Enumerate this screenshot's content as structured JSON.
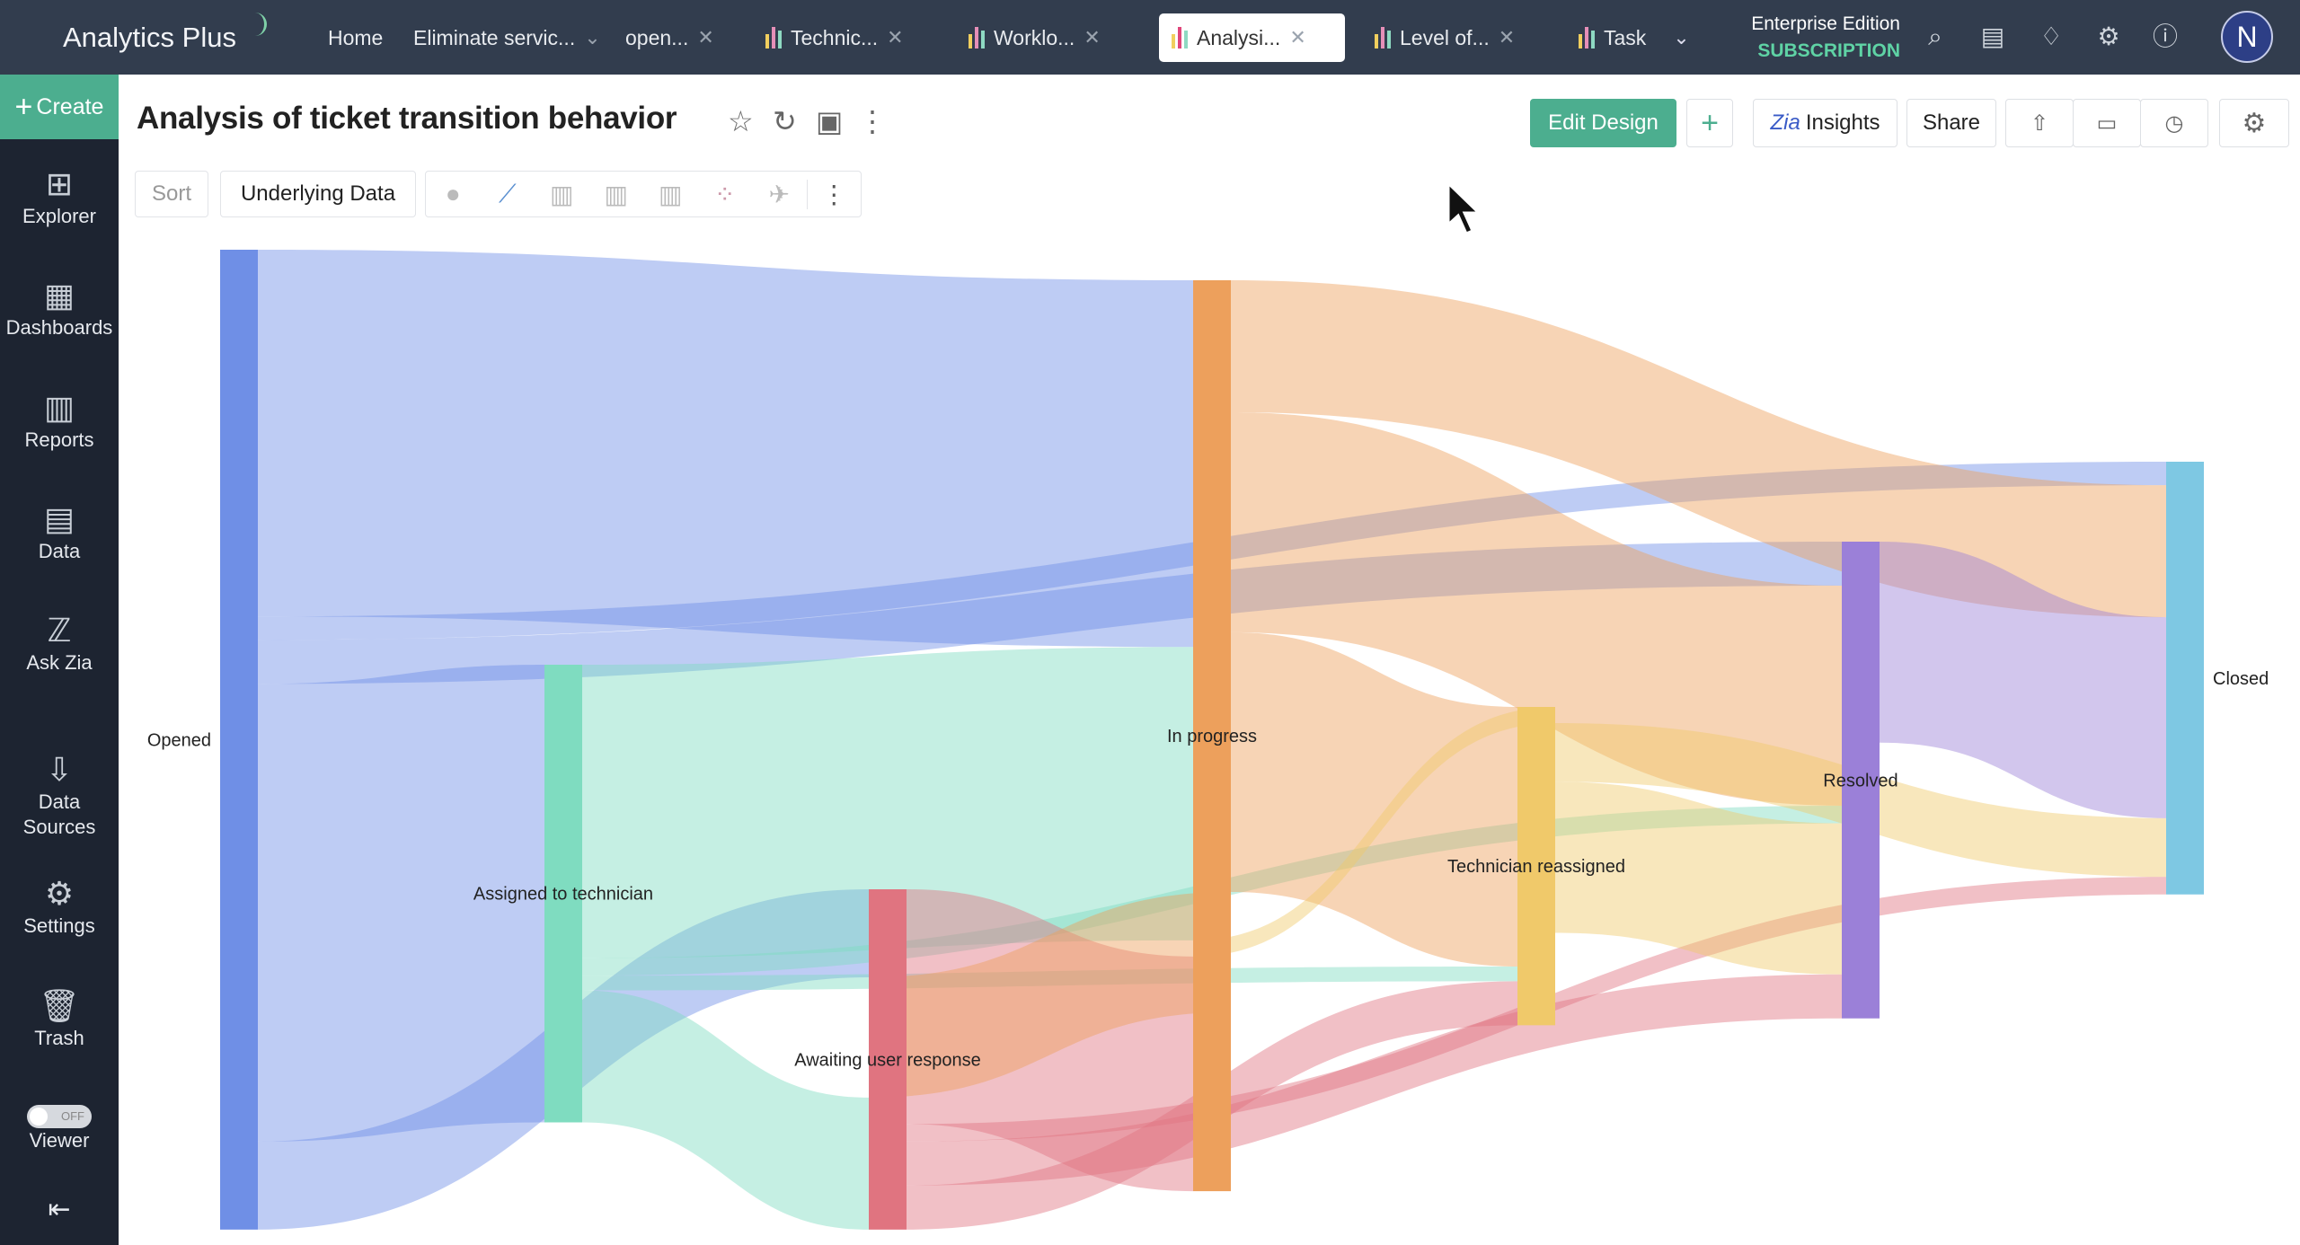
{
  "app": {
    "name": "Analytics Plus"
  },
  "tabs": [
    {
      "label": "Home",
      "icon": "none"
    },
    {
      "label": "Eliminate servic...",
      "icon": "chevron-down"
    },
    {
      "label": "open...",
      "icon": "close"
    },
    {
      "label": "Technic...",
      "icon": "bar-chart"
    },
    {
      "label": "Worklo...",
      "icon": "bar-chart"
    },
    {
      "label": "Analysi...",
      "icon": "bar-chart",
      "active": true
    },
    {
      "label": "Level of...",
      "icon": "bar-chart"
    },
    {
      "label": "Task",
      "icon": "bar-chart"
    }
  ],
  "header": {
    "edition": "Enterprise Edition",
    "subscription": "SUBSCRIPTION",
    "avatar": "N"
  },
  "sidebar": {
    "create": "Create",
    "items": [
      {
        "label": "Explorer",
        "icon": "explorer-icon"
      },
      {
        "label": "Dashboards",
        "icon": "dashboards-icon"
      },
      {
        "label": "Reports",
        "icon": "reports-icon"
      },
      {
        "label": "Data",
        "icon": "data-icon"
      },
      {
        "label": "Ask Zia",
        "icon": "zia-icon"
      },
      {
        "label": "Data Sources",
        "icon": "data-sources-icon"
      },
      {
        "label": "Settings",
        "icon": "gear-icon"
      },
      {
        "label": "Trash",
        "icon": "trash-icon"
      },
      {
        "label": "Viewer",
        "icon": "toggle"
      }
    ],
    "viewer_toggle": "OFF"
  },
  "report": {
    "title": "Analysis of ticket transition behavior"
  },
  "actions": {
    "edit_design": "Edit Design",
    "insights": "Insights",
    "share": "Share"
  },
  "toolbar": {
    "sort": "Sort",
    "underlying_data": "Underlying Data"
  },
  "colors": {
    "brand_green": "#4cae8f",
    "topbar": "#323d4e",
    "sidebar": "#1d2431"
  },
  "chart_data": {
    "type": "sankey",
    "nodes": [
      {
        "name": "Opened",
        "color": "#6f8fe6"
      },
      {
        "name": "Assigned to technician",
        "color": "#7fdcc0"
      },
      {
        "name": "Awaiting user response",
        "color": "#e07480"
      },
      {
        "name": "In progress",
        "color": "#eda05c"
      },
      {
        "name": "Technician reassigned",
        "color": "#f0c96a"
      },
      {
        "name": "Resolved",
        "color": "#9b80d8"
      },
      {
        "name": "Closed",
        "color": "#7ec8e3"
      }
    ],
    "links": [
      {
        "source": "Opened",
        "target": "In progress",
        "value": 250
      },
      {
        "source": "Opened",
        "target": "Assigned to technician",
        "value": 312
      },
      {
        "source": "Opened",
        "target": "Awaiting user response",
        "value": 60
      },
      {
        "source": "Opened",
        "target": "Resolved",
        "value": 30
      },
      {
        "source": "Opened",
        "target": "Closed",
        "value": 16
      },
      {
        "source": "Assigned to technician",
        "target": "In progress",
        "value": 200
      },
      {
        "source": "Assigned to technician",
        "target": "Awaiting user response",
        "value": 90
      },
      {
        "source": "Assigned to technician",
        "target": "Technician reassigned",
        "value": 10
      },
      {
        "source": "Assigned to technician",
        "target": "Resolved",
        "value": 12
      },
      {
        "source": "Awaiting user response",
        "target": "In progress",
        "value": 160
      },
      {
        "source": "Awaiting user response",
        "target": "Technician reassigned",
        "value": 30
      },
      {
        "source": "Awaiting user response",
        "target": "Resolved",
        "value": 30
      },
      {
        "source": "Awaiting user response",
        "target": "Closed",
        "value": 12
      },
      {
        "source": "In progress",
        "target": "Closed",
        "value": 90
      },
      {
        "source": "In progress",
        "target": "Resolved",
        "value": 150
      },
      {
        "source": "In progress",
        "target": "Technician reassigned",
        "value": 177
      },
      {
        "source": "In progress",
        "target": "Awaiting user response",
        "value": 82
      },
      {
        "source": "Technician reassigned",
        "target": "In progress",
        "value": 11
      },
      {
        "source": "Technician reassigned",
        "target": "Resolved",
        "value": 103
      },
      {
        "source": "Technician reassigned",
        "target": "Closed",
        "value": 40
      },
      {
        "source": "Resolved",
        "target": "Closed",
        "value": 137
      }
    ]
  }
}
